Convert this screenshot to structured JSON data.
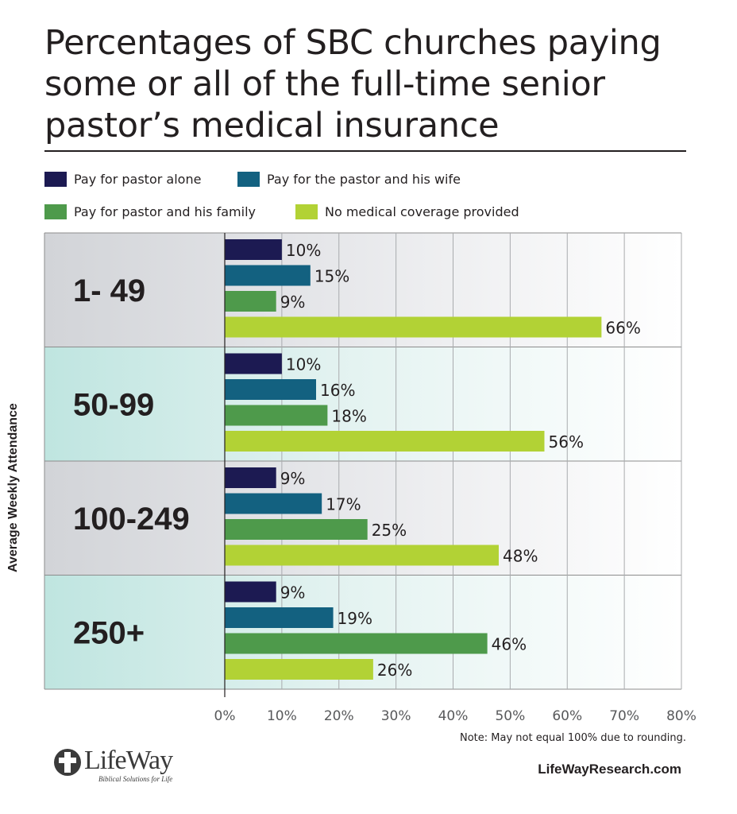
{
  "title": "Percentages of SBC churches paying some or all of the full-time senior pastor’s medical insurance",
  "legend": [
    {
      "label": "Pay for pastor alone",
      "color": "#1c1a52"
    },
    {
      "label": "Pay for the pastor and his wife",
      "color": "#136180"
    },
    {
      "label": "Pay for pastor and his family",
      "color": "#4e9a4b"
    },
    {
      "label": "No medical coverage provided",
      "color": "#b2d235"
    }
  ],
  "note": "Note: May not equal 100% due to rounding.",
  "website": "LifeWayResearch.com",
  "logo": {
    "name": "LifeWay",
    "tagline": "Biblical Solutions for Life"
  },
  "chart_data": {
    "type": "bar",
    "orientation": "horizontal",
    "ylabel": "Average Weekly Attendance",
    "xlabel": "",
    "xlim": [
      0,
      80
    ],
    "xticks": [
      "0%",
      "10%",
      "20%",
      "30%",
      "40%",
      "50%",
      "60%",
      "70%",
      "80%"
    ],
    "grid": true,
    "categories": [
      "1- 49",
      "50-99",
      "100-249",
      "250+"
    ],
    "series": [
      {
        "name": "Pay for pastor alone",
        "values": [
          10,
          10,
          9,
          9
        ]
      },
      {
        "name": "Pay for the pastor and his wife",
        "values": [
          15,
          16,
          17,
          19
        ]
      },
      {
        "name": "Pay for pastor and his family",
        "values": [
          9,
          18,
          25,
          46
        ]
      },
      {
        "name": "No medical coverage provided",
        "values": [
          66,
          56,
          48,
          26
        ]
      }
    ],
    "value_labels": [
      [
        "10%",
        "15%",
        "9%",
        "66%"
      ],
      [
        "10%",
        "16%",
        "18%",
        "56%"
      ],
      [
        "9%",
        "17%",
        "25%",
        "48%"
      ],
      [
        "9%",
        "19%",
        "46%",
        "26%"
      ]
    ]
  }
}
